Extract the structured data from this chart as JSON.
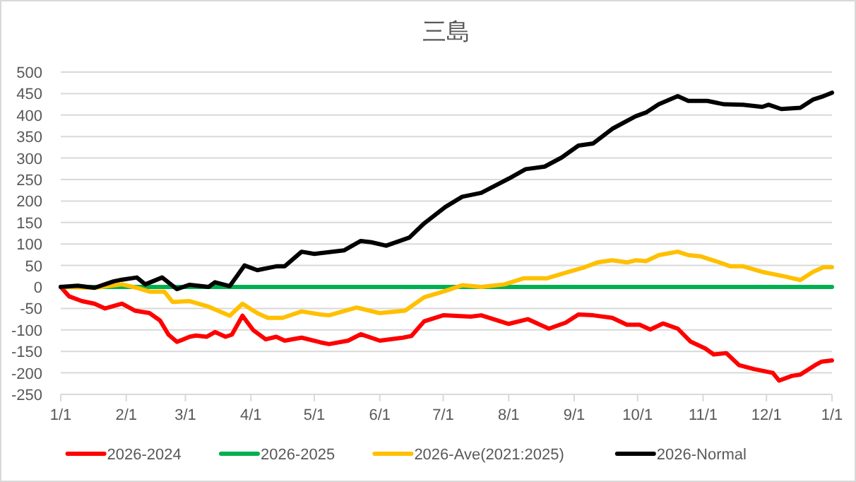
{
  "chart_data": {
    "type": "line",
    "title": "三島",
    "ylim": [
      -250,
      500
    ],
    "yticks": [
      -250,
      -200,
      -150,
      -100,
      -50,
      0,
      50,
      100,
      150,
      200,
      250,
      300,
      350,
      400,
      450,
      500
    ],
    "xlim": [
      "2026-01-01",
      "2027-01-01"
    ],
    "xticks": [
      {
        "value": "2026-01-01",
        "label": "1/1"
      },
      {
        "value": "2026-02-01",
        "label": "2/1"
      },
      {
        "value": "2026-03-01",
        "label": "3/1"
      },
      {
        "value": "2026-04-01",
        "label": "4/1"
      },
      {
        "value": "2026-05-01",
        "label": "5/1"
      },
      {
        "value": "2026-06-01",
        "label": "6/1"
      },
      {
        "value": "2026-07-01",
        "label": "7/1"
      },
      {
        "value": "2026-08-01",
        "label": "8/1"
      },
      {
        "value": "2026-09-01",
        "label": "9/1"
      },
      {
        "value": "2026-10-01",
        "label": "10/1"
      },
      {
        "value": "2026-11-01",
        "label": "11/1"
      },
      {
        "value": "2026-12-01",
        "label": "12/1"
      },
      {
        "value": "2027-01-01",
        "label": "1/1"
      }
    ],
    "grid": "y",
    "legend": "bottom",
    "marker": "none",
    "line_style": "solid",
    "series": [
      {
        "name": "2026-2024",
        "color": "#ff0000",
        "x": [
          "2026-01-01",
          "2026-01-05",
          "2026-01-11",
          "2026-01-17",
          "2026-01-22",
          "2026-01-30",
          "2026-02-05",
          "2026-02-12",
          "2026-02-17",
          "2026-02-21",
          "2026-02-25",
          "2026-03-03",
          "2026-03-06",
          "2026-03-11",
          "2026-03-15",
          "2026-03-20",
          "2026-03-23",
          "2026-03-28",
          "2026-04-02",
          "2026-04-08",
          "2026-04-13",
          "2026-04-17",
          "2026-04-25",
          "2026-05-04",
          "2026-05-08",
          "2026-05-17",
          "2026-05-23",
          "2026-06-01",
          "2026-06-12",
          "2026-06-16",
          "2026-06-22",
          "2026-07-01",
          "2026-07-14",
          "2026-07-19",
          "2026-07-28",
          "2026-08-01",
          "2026-08-10",
          "2026-08-20",
          "2026-08-28",
          "2026-09-03",
          "2026-09-10",
          "2026-09-19",
          "2026-09-26",
          "2026-10-02",
          "2026-10-07",
          "2026-10-13",
          "2026-10-20",
          "2026-10-26",
          "2026-11-02",
          "2026-11-06",
          "2026-11-12",
          "2026-11-18",
          "2026-11-25",
          "2026-12-04",
          "2026-12-07",
          "2026-12-13",
          "2026-12-17",
          "2026-12-24",
          "2026-12-27",
          "2027-01-01"
        ],
        "values": [
          0,
          -22,
          -33,
          -39,
          -50,
          -39,
          -55,
          -61,
          -78,
          -111,
          -128,
          -116,
          -113,
          -116,
          -105,
          -116,
          -111,
          -67,
          -100,
          -122,
          -116,
          -125,
          -118,
          -129,
          -133,
          -125,
          -110,
          -125,
          -118,
          -114,
          -80,
          -66,
          -69,
          -66,
          -80,
          -86,
          -75,
          -97,
          -83,
          -64,
          -66,
          -72,
          -88,
          -88,
          -99,
          -85,
          -97,
          -127,
          -143,
          -157,
          -154,
          -182,
          -191,
          -200,
          -218,
          -207,
          -204,
          -182,
          -174,
          -171
        ]
      },
      {
        "name": "2026-2025",
        "color": "#00b050",
        "x": [
          "2026-01-01",
          "2027-01-01"
        ],
        "values": [
          0,
          0
        ]
      },
      {
        "name": "2026-Ave(2021:2025)",
        "color": "#ffc000",
        "x": [
          "2026-01-01",
          "2026-01-17",
          "2026-01-30",
          "2026-02-06",
          "2026-02-12",
          "2026-02-19",
          "2026-02-23",
          "2026-03-03",
          "2026-03-12",
          "2026-03-22",
          "2026-03-28",
          "2026-04-04",
          "2026-04-09",
          "2026-04-16",
          "2026-04-25",
          "2026-05-04",
          "2026-05-08",
          "2026-05-21",
          "2026-06-01",
          "2026-06-13",
          "2026-06-22",
          "2026-07-01",
          "2026-07-10",
          "2026-07-19",
          "2026-07-30",
          "2026-08-08",
          "2026-08-19",
          "2026-08-28",
          "2026-09-06",
          "2026-09-12",
          "2026-09-19",
          "2026-09-26",
          "2026-09-30",
          "2026-10-05",
          "2026-10-11",
          "2026-10-20",
          "2026-10-25",
          "2026-10-31",
          "2026-11-07",
          "2026-11-14",
          "2026-11-20",
          "2026-11-29",
          "2026-12-03",
          "2026-12-10",
          "2026-12-17",
          "2026-12-23",
          "2026-12-28",
          "2027-01-01"
        ],
        "values": [
          0,
          -2,
          6,
          -2,
          -11,
          -11,
          -35,
          -33,
          -46,
          -67,
          -39,
          -61,
          -72,
          -72,
          -57,
          -64,
          -66,
          -48,
          -61,
          -55,
          -24,
          -11,
          4,
          0,
          6,
          20,
          20,
          33,
          46,
          57,
          62,
          57,
          62,
          60,
          74,
          82,
          74,
          71,
          60,
          48,
          48,
          35,
          31,
          24,
          16,
          35,
          46,
          46
        ]
      },
      {
        "name": "2026-Normal",
        "color": "#000000",
        "x": [
          "2026-01-01",
          "2026-01-09",
          "2026-01-17",
          "2026-01-26",
          "2026-01-30",
          "2026-02-06",
          "2026-02-10",
          "2026-02-18",
          "2026-02-25",
          "2026-03-03",
          "2026-03-12",
          "2026-03-15",
          "2026-03-22",
          "2026-03-29",
          "2026-04-04",
          "2026-04-13",
          "2026-04-17",
          "2026-04-25",
          "2026-05-01",
          "2026-05-15",
          "2026-05-23",
          "2026-05-28",
          "2026-06-04",
          "2026-06-15",
          "2026-06-22",
          "2026-07-02",
          "2026-07-10",
          "2026-07-19",
          "2026-08-01",
          "2026-08-09",
          "2026-08-18",
          "2026-08-26",
          "2026-09-03",
          "2026-09-10",
          "2026-09-19",
          "2026-09-30",
          "2026-10-05",
          "2026-10-11",
          "2026-10-20",
          "2026-10-25",
          "2026-11-03",
          "2026-11-11",
          "2026-11-20",
          "2026-11-29",
          "2026-12-02",
          "2026-12-08",
          "2026-12-17",
          "2026-12-23",
          "2026-12-28",
          "2027-01-01"
        ],
        "values": [
          0,
          3,
          -2,
          13,
          17,
          22,
          6,
          22,
          -5,
          5,
          0,
          11,
          2,
          50,
          39,
          48,
          48,
          82,
          77,
          85,
          107,
          104,
          96,
          115,
          148,
          186,
          210,
          219,
          252,
          274,
          280,
          301,
          329,
          334,
          368,
          397,
          406,
          425,
          444,
          433,
          433,
          425,
          424,
          419,
          424,
          414,
          417,
          436,
          444,
          452
        ]
      }
    ]
  }
}
